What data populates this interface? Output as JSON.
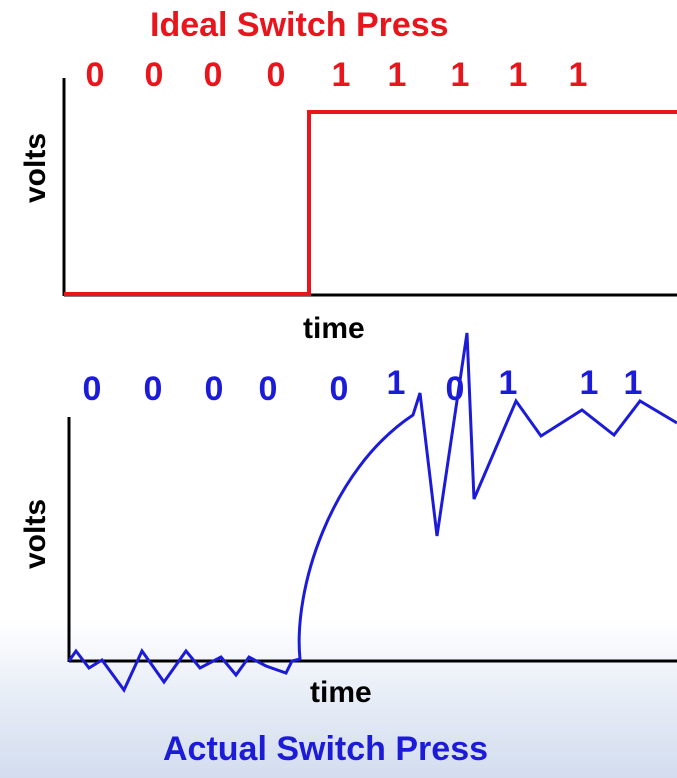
{
  "ideal": {
    "title": "Ideal Switch Press",
    "bits": [
      "0",
      "0",
      "0",
      "0",
      "1",
      "1",
      "1",
      "1",
      "1"
    ],
    "ylabel": "volts",
    "xlabel": "time",
    "color": "#e8161c"
  },
  "actual": {
    "title": "Actual Switch Press",
    "bits": [
      "0",
      "0",
      "0",
      "0",
      "0",
      "1",
      "0",
      "1",
      "1",
      "1"
    ],
    "ylabel": "volts",
    "xlabel": "time",
    "color": "#1c1cd8"
  }
}
